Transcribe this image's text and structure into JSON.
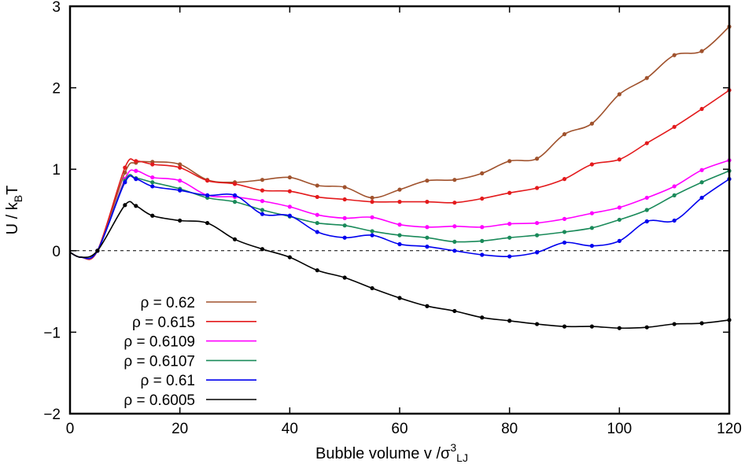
{
  "chart_data": {
    "type": "line",
    "title": "",
    "xlabel": {
      "main": "Bubble volume v /σ",
      "sup": "3",
      "sub": "LJ"
    },
    "ylabel": {
      "main": "U / k",
      "sub": "B",
      "tail": "T"
    },
    "xlim": [
      0,
      120
    ],
    "ylim": [
      -2,
      3
    ],
    "xticks": [
      0,
      20,
      40,
      60,
      80,
      100,
      120
    ],
    "yticks": [
      -2,
      -1,
      0,
      1,
      2,
      3
    ],
    "xtick_labels": [
      "0",
      "20",
      "40",
      "60",
      "80",
      "100",
      "120"
    ],
    "ytick_labels": [
      "−2",
      "−1",
      "0",
      "1",
      "2",
      "3"
    ],
    "reference_line": {
      "y": 0,
      "style": "dashed"
    },
    "legend_position": "bottom-left",
    "series": [
      {
        "name": "ρ = 0.62",
        "color": "#a0522d",
        "x": [
          0,
          2,
          5,
          10,
          12,
          15,
          20,
          25,
          30,
          35,
          40,
          45,
          50,
          55,
          60,
          65,
          70,
          75,
          80,
          85,
          90,
          95,
          100,
          105,
          110,
          115,
          120
        ],
        "y": [
          -0.02,
          -0.08,
          0.0,
          0.96,
          1.08,
          1.09,
          1.06,
          0.87,
          0.84,
          0.87,
          0.9,
          0.8,
          0.78,
          0.65,
          0.75,
          0.86,
          0.87,
          0.95,
          1.1,
          1.13,
          1.43,
          1.56,
          1.92,
          2.12,
          2.4,
          2.45,
          2.75
        ]
      },
      {
        "name": "ρ = 0.615",
        "color": "#e31a1c",
        "x": [
          0,
          2,
          5,
          10,
          12,
          15,
          20,
          25,
          30,
          35,
          40,
          45,
          50,
          55,
          60,
          65,
          70,
          75,
          80,
          85,
          90,
          95,
          100,
          105,
          110,
          115,
          120
        ],
        "y": [
          -0.02,
          -0.08,
          0.0,
          1.02,
          1.1,
          1.06,
          1.02,
          0.86,
          0.82,
          0.74,
          0.73,
          0.66,
          0.63,
          0.6,
          0.6,
          0.6,
          0.59,
          0.64,
          0.71,
          0.77,
          0.88,
          1.06,
          1.12,
          1.32,
          1.52,
          1.74,
          1.97
        ]
      },
      {
        "name": "ρ = 0.6109",
        "color": "#ff00ff",
        "x": [
          0,
          2,
          5,
          10,
          12,
          15,
          20,
          25,
          30,
          35,
          40,
          45,
          50,
          55,
          60,
          65,
          70,
          75,
          80,
          85,
          90,
          95,
          100,
          105,
          110,
          115,
          120
        ],
        "y": [
          -0.02,
          -0.08,
          0.0,
          0.88,
          0.98,
          0.9,
          0.86,
          0.68,
          0.66,
          0.61,
          0.54,
          0.44,
          0.4,
          0.41,
          0.32,
          0.29,
          0.3,
          0.29,
          0.33,
          0.34,
          0.39,
          0.46,
          0.53,
          0.65,
          0.79,
          0.99,
          1.11
        ]
      },
      {
        "name": "ρ = 0.6107",
        "color": "#1a8a5a",
        "x": [
          0,
          2,
          5,
          10,
          12,
          15,
          20,
          25,
          30,
          35,
          40,
          45,
          50,
          55,
          60,
          65,
          70,
          75,
          80,
          85,
          90,
          95,
          100,
          105,
          110,
          115,
          120
        ],
        "y": [
          -0.02,
          -0.08,
          0.0,
          0.86,
          0.89,
          0.84,
          0.76,
          0.65,
          0.6,
          0.5,
          0.42,
          0.34,
          0.31,
          0.24,
          0.19,
          0.16,
          0.11,
          0.12,
          0.16,
          0.19,
          0.23,
          0.28,
          0.38,
          0.5,
          0.68,
          0.84,
          0.98
        ]
      },
      {
        "name": "ρ = 0.61",
        "color": "#0000ee",
        "x": [
          0,
          2,
          5,
          10,
          12,
          15,
          20,
          25,
          30,
          35,
          40,
          45,
          50,
          55,
          60,
          65,
          70,
          75,
          80,
          85,
          90,
          95,
          100,
          105,
          110,
          115,
          120
        ],
        "y": [
          -0.02,
          -0.08,
          0.0,
          0.84,
          0.88,
          0.79,
          0.74,
          0.68,
          0.68,
          0.45,
          0.43,
          0.23,
          0.16,
          0.19,
          0.08,
          0.05,
          0.0,
          -0.05,
          -0.07,
          -0.02,
          0.1,
          0.06,
          0.12,
          0.36,
          0.37,
          0.65,
          0.88
        ]
      },
      {
        "name": "ρ = 0.6005",
        "color": "#000000",
        "x": [
          0,
          2,
          5,
          10,
          12,
          15,
          20,
          25,
          30,
          35,
          40,
          45,
          50,
          55,
          60,
          65,
          70,
          75,
          80,
          85,
          90,
          95,
          100,
          105,
          110,
          115,
          120
        ],
        "y": [
          -0.02,
          -0.08,
          0.0,
          0.56,
          0.55,
          0.43,
          0.37,
          0.34,
          0.14,
          0.02,
          -0.08,
          -0.24,
          -0.33,
          -0.46,
          -0.58,
          -0.68,
          -0.74,
          -0.82,
          -0.86,
          -0.9,
          -0.93,
          -0.93,
          -0.95,
          -0.94,
          -0.9,
          -0.89,
          -0.85
        ]
      }
    ]
  }
}
